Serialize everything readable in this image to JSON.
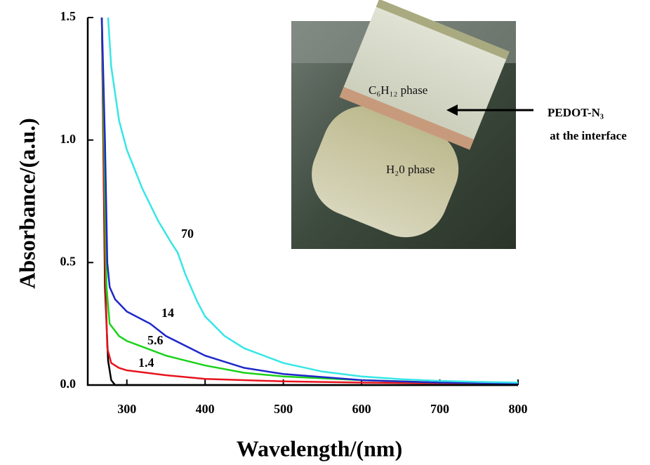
{
  "chart_data": {
    "type": "line",
    "xlabel": "Wavelength/(nm)",
    "ylabel": "Absorbance/(a.u.)",
    "xlim": [
      250,
      800
    ],
    "ylim": [
      0,
      1.5
    ],
    "xticks": [
      300,
      400,
      500,
      600,
      700,
      800
    ],
    "yticks": [
      {
        "value": 0,
        "label": "0.0"
      },
      0.5,
      {
        "value": 1,
        "label": "1.0"
      },
      {
        "value": 1.5,
        "label": "1.5"
      }
    ],
    "series": [
      {
        "color": "#000000",
        "x": [
          268,
          272,
          276,
          280,
          285,
          300,
          800
        ],
        "values": [
          1.5,
          0.4,
          0.1,
          0.02,
          0.0,
          0.0,
          0.0
        ]
      },
      {
        "name": "1.4",
        "color": "#e8141e",
        "x": [
          268,
          272,
          275,
          280,
          290,
          300,
          350,
          400,
          500,
          600,
          800
        ],
        "values": [
          1.5,
          0.5,
          0.15,
          0.09,
          0.07,
          0.06,
          0.04,
          0.025,
          0.015,
          0.01,
          0.005
        ]
      },
      {
        "name": "5.6",
        "color": "#19d219",
        "x": [
          268,
          272,
          274,
          278,
          290,
          300,
          350,
          400,
          450,
          500,
          600,
          700,
          800
        ],
        "values": [
          1.5,
          0.8,
          0.4,
          0.25,
          0.2,
          0.18,
          0.12,
          0.08,
          0.05,
          0.035,
          0.02,
          0.01,
          0.005
        ]
      },
      {
        "name": "14",
        "color": "#1e28c8",
        "x": [
          268,
          272,
          275,
          278,
          285,
          300,
          330,
          350,
          400,
          450,
          500,
          600,
          700,
          800
        ],
        "values": [
          1.5,
          1.0,
          0.5,
          0.4,
          0.35,
          0.3,
          0.25,
          0.2,
          0.12,
          0.07,
          0.045,
          0.02,
          0.01,
          0.006
        ]
      },
      {
        "name": "70",
        "color": "#37e6e6",
        "x": [
          276,
          280,
          290,
          300,
          320,
          340,
          355,
          365,
          375,
          390,
          400,
          425,
          450,
          500,
          550,
          600,
          650,
          700,
          750,
          800
        ],
        "values": [
          1.5,
          1.3,
          1.08,
          0.96,
          0.8,
          0.67,
          0.59,
          0.54,
          0.45,
          0.34,
          0.28,
          0.2,
          0.15,
          0.09,
          0.055,
          0.035,
          0.024,
          0.017,
          0.013,
          0.01
        ]
      }
    ],
    "annotations": [
      "C₆H₁₂ phase",
      "H₂0 phase",
      "PEDOT-N₃",
      "at the interface"
    ]
  }
}
